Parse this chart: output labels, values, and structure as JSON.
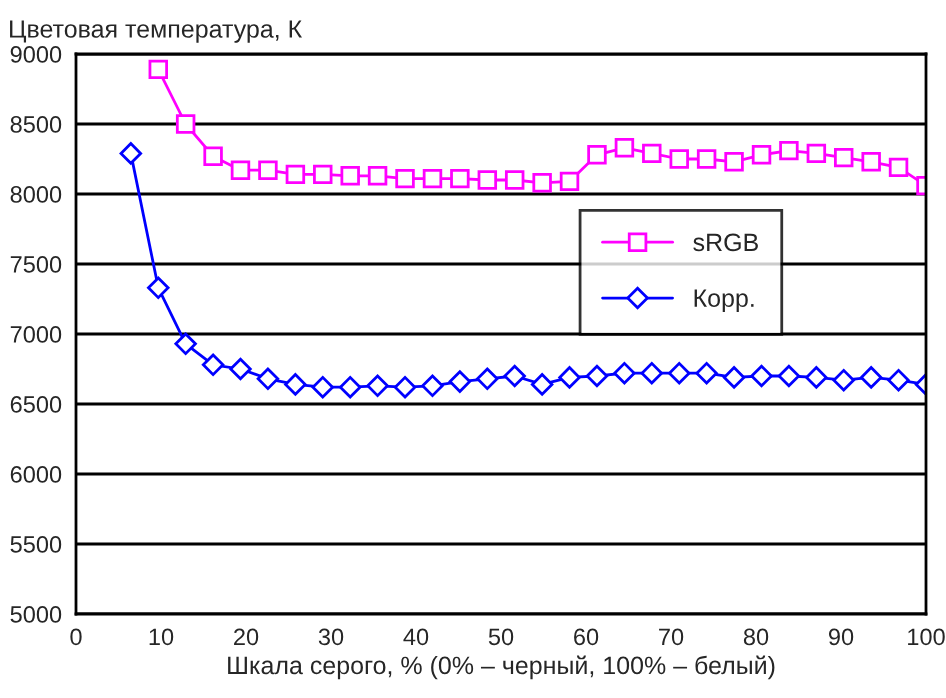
{
  "chart_data": {
    "type": "line",
    "ylabel": "Цветовая температура, К",
    "xlabel": "Шкала серого, % (0% – черный, 100% – белый)",
    "xlim": [
      0,
      100
    ],
    "xticks": [
      0,
      10,
      20,
      30,
      40,
      50,
      60,
      70,
      80,
      90,
      100
    ],
    "ylim": [
      5000,
      9000
    ],
    "yticks": [
      5000,
      5500,
      6000,
      6500,
      7000,
      7500,
      8000,
      8500,
      9000
    ],
    "grid": "y",
    "legend": "right",
    "series": [
      {
        "name": "sRGB",
        "color": "#ff00ff",
        "marker": "square",
        "x": [
          9.68,
          12.9,
          16.13,
          19.35,
          22.58,
          25.81,
          29.03,
          32.26,
          35.48,
          38.71,
          41.94,
          45.16,
          48.39,
          51.61,
          54.84,
          58.06,
          61.29,
          64.52,
          67.74,
          70.97,
          74.19,
          77.42,
          80.65,
          83.87,
          87.1,
          90.32,
          93.55,
          96.77,
          100
        ],
        "values": [
          8890,
          8500,
          8270,
          8170,
          8170,
          8140,
          8140,
          8130,
          8130,
          8110,
          8110,
          8110,
          8100,
          8100,
          8080,
          8090,
          8280,
          8330,
          8290,
          8250,
          8250,
          8230,
          8280,
          8310,
          8290,
          8260,
          8230,
          8190,
          8060
        ]
      },
      {
        "name": "Корр.",
        "color": "#0000ff",
        "marker": "diamond",
        "x": [
          6.45,
          9.68,
          12.9,
          16.13,
          19.35,
          22.58,
          25.81,
          29.03,
          32.26,
          35.48,
          38.71,
          41.94,
          45.16,
          48.39,
          51.61,
          54.84,
          58.06,
          61.29,
          64.52,
          67.74,
          70.97,
          74.19,
          77.42,
          80.65,
          83.87,
          87.1,
          90.32,
          93.55,
          96.77,
          100
        ],
        "values": [
          8290,
          7330,
          6930,
          6780,
          6750,
          6680,
          6640,
          6620,
          6620,
          6630,
          6620,
          6630,
          6660,
          6680,
          6700,
          6640,
          6690,
          6700,
          6720,
          6720,
          6720,
          6720,
          6690,
          6700,
          6700,
          6690,
          6670,
          6690,
          6670,
          6640
        ]
      }
    ]
  }
}
